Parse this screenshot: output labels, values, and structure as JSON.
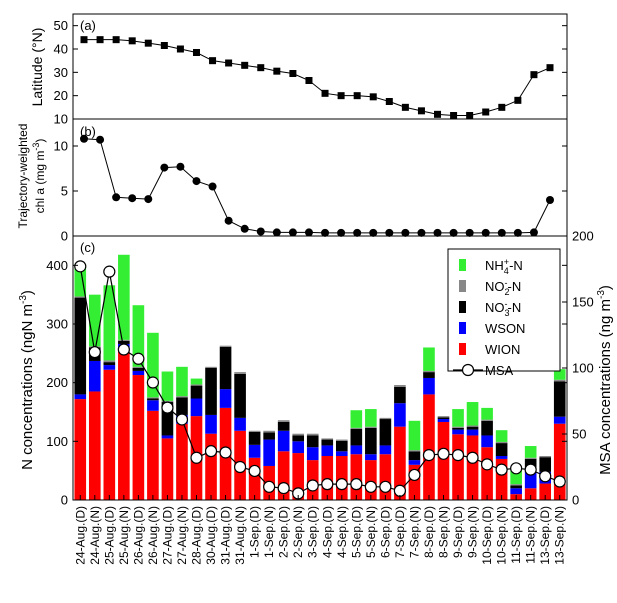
{
  "chart_data": [
    {
      "type": "line",
      "panel_label": "(a)",
      "ylabel": "Latitude (°N)",
      "ylim": [
        10,
        55
      ],
      "yticks": [
        10,
        20,
        30,
        40,
        50
      ],
      "marker": "square",
      "values": [
        44,
        44,
        44,
        43.5,
        42.5,
        41.5,
        40,
        38.5,
        35,
        34,
        33,
        32,
        30.5,
        29.5,
        26.5,
        21,
        20,
        20,
        19.5,
        17.5,
        15,
        13.5,
        12,
        11.5,
        11.5,
        13,
        15,
        18,
        29,
        32
      ]
    },
    {
      "type": "line",
      "panel_label": "(b)",
      "ylabel": "Trajectory-weighted chl a (mg m⁻³)",
      "ylabel_line1": "Trajectory-weighted",
      "ylabel_line2": "chl a (mg m⁻³)",
      "ylim": [
        0,
        13
      ],
      "yticks": [
        0,
        5,
        10
      ],
      "marker": "circle-filled",
      "values": [
        10.8,
        10.7,
        4.3,
        4.2,
        4.1,
        7.6,
        7.7,
        6.1,
        5.5,
        1.7,
        0.8,
        0.5,
        0.4,
        0.4,
        0.4,
        0.35,
        0.35,
        0.35,
        0.35,
        0.35,
        0.35,
        0.35,
        0.35,
        0.35,
        0.35,
        0.35,
        0.35,
        0.35,
        0.4,
        4.0
      ]
    },
    {
      "type": "bar",
      "stacked": true,
      "panel_label": "(c)",
      "ylabel": "N concentrations (ngN m⁻³)",
      "ylabel_right": "MSA concentrations (ng m⁻³)",
      "ylim": [
        0,
        450
      ],
      "yticks": [
        0,
        100,
        200,
        300,
        400
      ],
      "ylim_right": [
        0,
        200
      ],
      "yticks_right": [
        0,
        50,
        100,
        150,
        200
      ],
      "legend_position": "top-right",
      "categories": [
        "24-Aug.(D)",
        "24-Aug.(N)",
        "25-Aug.(D)",
        "25-Aug.(N)",
        "26-Aug.(D)",
        "26-Aug.(N)",
        "27-Aug.(D)",
        "27-Aug.(N)",
        "28-Aug.(D)",
        "30-Aug.(D)",
        "31-Aug.(D)",
        "31-Aug.(N)",
        "1-Sep.(D)",
        "1-Sep.(N)",
        "2-Sep.(D)",
        "2-Sep.(N)",
        "3-Sep.(D)",
        "4-Sep.(D)",
        "4-Sep.(N)",
        "5-Sep.(D)",
        "5-Sep.(N)",
        "6-Sep.(D)",
        "7-Sep.(D)",
        "7-Sep.(N)",
        "8-Sep.(D)",
        "8-Sep.(N)",
        "9-Sep.(D)",
        "9-Sep.(N)",
        "10-Sep.(D)",
        "10-Sep.(N)",
        "11-Sep.(D)",
        "11-Sep.(N)",
        "13-Sep.(D)",
        "13-Sep.(N)"
      ],
      "series": [
        {
          "name": "WION",
          "legend": [
            "WION"
          ],
          "color": "#ff0000",
          "axis": "left",
          "values": [
            172,
            185,
            222,
            258,
            213,
            152,
            105,
            130,
            143,
            113,
            157,
            118,
            72,
            58,
            83,
            80,
            68,
            75,
            75,
            78,
            68,
            78,
            125,
            60,
            180,
            133,
            112,
            110,
            90,
            70,
            10,
            20,
            28,
            130
          ]
        },
        {
          "name": "WSON",
          "legend": [
            "WSON"
          ],
          "color": "#0000ff",
          "axis": "left",
          "values": [
            8,
            52,
            8,
            8,
            7,
            18,
            5,
            15,
            30,
            32,
            32,
            22,
            22,
            45,
            35,
            20,
            22,
            18,
            8,
            15,
            10,
            15,
            40,
            8,
            28,
            5,
            8,
            10,
            20,
            5,
            10,
            30,
            20,
            12
          ]
        },
        {
          "name": "NO3-N",
          "legend": [
            "NO",
            "3",
            "-",
            "-N"
          ],
          "color": "#000000",
          "axis": "left",
          "values": [
            165,
            23,
            5,
            5,
            5,
            3,
            57,
            30,
            22,
            80,
            72,
            75,
            22,
            12,
            15,
            10,
            20,
            10,
            18,
            28,
            45,
            45,
            28,
            15,
            10,
            3,
            3,
            5,
            25,
            22,
            5,
            20,
            25,
            60
          ]
        },
        {
          "name": "NO2-N",
          "legend": [
            "NO",
            "2",
            "-",
            "-N"
          ],
          "color": "#888888",
          "axis": "left",
          "values": [
            2,
            2,
            3,
            2,
            2,
            2,
            2,
            2,
            2,
            2,
            2,
            3,
            2,
            3,
            3,
            3,
            3,
            2,
            2,
            2,
            2,
            2,
            3,
            2,
            2,
            2,
            2,
            2,
            2,
            2,
            2,
            2,
            2,
            3
          ]
        },
        {
          "name": "NH4+-N",
          "legend": [
            "NH",
            "4",
            "+",
            "-N"
          ],
          "color": "#33ee33",
          "axis": "left",
          "values": [
            55,
            88,
            128,
            145,
            105,
            110,
            50,
            50,
            10,
            0,
            0,
            0,
            0,
            0,
            0,
            0,
            0,
            0,
            0,
            30,
            30,
            0,
            0,
            50,
            40,
            0,
            30,
            40,
            20,
            20,
            25,
            20,
            0,
            18
          ]
        },
        {
          "name": "MSA",
          "legend": [
            "MSA"
          ],
          "color": "#000000",
          "axis": "right",
          "marker": "circle-open",
          "values": [
            177,
            112,
            173,
            114,
            107,
            89,
            70,
            61,
            32,
            37,
            36,
            25,
            22,
            10,
            9,
            5,
            11,
            12,
            12,
            12,
            10,
            10,
            7,
            19,
            34,
            35,
            34,
            32,
            27,
            23,
            24,
            23,
            18,
            14
          ]
        }
      ],
      "legend_order": [
        "NH4+-N",
        "NO2-N",
        "NO3-N",
        "WSON",
        "WION",
        "MSA"
      ]
    }
  ]
}
